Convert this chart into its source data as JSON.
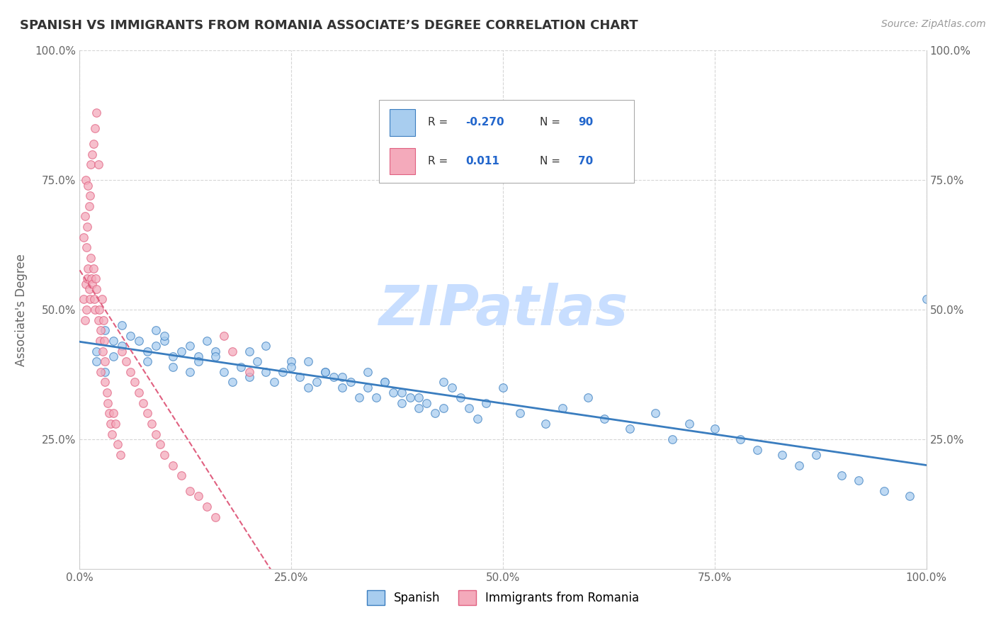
{
  "title": "SPANISH VS IMMIGRANTS FROM ROMANIA ASSOCIATE’S DEGREE CORRELATION CHART",
  "source_text": "Source: ZipAtlas.com",
  "ylabel": "Associate's Degree",
  "watermark": "ZIPatlas",
  "xlim": [
    0.0,
    1.0
  ],
  "ylim": [
    0.0,
    1.0
  ],
  "xtick_labels": [
    "0.0%",
    "25.0%",
    "50.0%",
    "75.0%",
    "100.0%"
  ],
  "xtick_positions": [
    0.0,
    0.25,
    0.5,
    0.75,
    1.0
  ],
  "ytick_labels": [
    "25.0%",
    "50.0%",
    "75.0%",
    "100.0%"
  ],
  "ytick_positions": [
    0.25,
    0.5,
    0.75,
    1.0
  ],
  "blue_scatter_x": [
    0.02,
    0.03,
    0.04,
    0.02,
    0.03,
    0.05,
    0.04,
    0.06,
    0.05,
    0.07,
    0.08,
    0.09,
    0.1,
    0.08,
    0.09,
    0.11,
    0.1,
    0.12,
    0.11,
    0.13,
    0.14,
    0.15,
    0.13,
    0.16,
    0.14,
    0.17,
    0.18,
    0.16,
    0.19,
    0.2,
    0.21,
    0.22,
    0.2,
    0.23,
    0.24,
    0.25,
    0.22,
    0.26,
    0.27,
    0.25,
    0.28,
    0.29,
    0.27,
    0.3,
    0.31,
    0.29,
    0.32,
    0.33,
    0.31,
    0.34,
    0.35,
    0.36,
    0.34,
    0.37,
    0.38,
    0.36,
    0.39,
    0.4,
    0.38,
    0.41,
    0.42,
    0.4,
    0.43,
    0.44,
    0.45,
    0.43,
    0.46,
    0.47,
    0.48,
    0.5,
    0.52,
    0.55,
    0.57,
    0.6,
    0.62,
    0.65,
    0.68,
    0.7,
    0.72,
    0.75,
    0.78,
    0.8,
    0.83,
    0.85,
    0.87,
    0.9,
    0.92,
    0.95,
    0.98,
    1.0
  ],
  "blue_scatter_y": [
    0.42,
    0.38,
    0.44,
    0.4,
    0.46,
    0.43,
    0.41,
    0.45,
    0.47,
    0.44,
    0.42,
    0.46,
    0.44,
    0.4,
    0.43,
    0.41,
    0.45,
    0.42,
    0.39,
    0.43,
    0.41,
    0.44,
    0.38,
    0.42,
    0.4,
    0.38,
    0.36,
    0.41,
    0.39,
    0.37,
    0.4,
    0.38,
    0.42,
    0.36,
    0.38,
    0.4,
    0.43,
    0.37,
    0.35,
    0.39,
    0.36,
    0.38,
    0.4,
    0.37,
    0.35,
    0.38,
    0.36,
    0.33,
    0.37,
    0.35,
    0.33,
    0.36,
    0.38,
    0.34,
    0.32,
    0.36,
    0.33,
    0.31,
    0.34,
    0.32,
    0.3,
    0.33,
    0.31,
    0.35,
    0.33,
    0.36,
    0.31,
    0.29,
    0.32,
    0.35,
    0.3,
    0.28,
    0.31,
    0.33,
    0.29,
    0.27,
    0.3,
    0.25,
    0.28,
    0.27,
    0.25,
    0.23,
    0.22,
    0.2,
    0.22,
    0.18,
    0.17,
    0.15,
    0.14,
    0.52
  ],
  "pink_scatter_x": [
    0.005,
    0.006,
    0.007,
    0.008,
    0.009,
    0.01,
    0.011,
    0.012,
    0.013,
    0.014,
    0.005,
    0.006,
    0.008,
    0.009,
    0.011,
    0.012,
    0.007,
    0.01,
    0.013,
    0.015,
    0.015,
    0.016,
    0.017,
    0.018,
    0.019,
    0.02,
    0.016,
    0.018,
    0.02,
    0.022,
    0.022,
    0.024,
    0.025,
    0.023,
    0.026,
    0.028,
    0.027,
    0.029,
    0.03,
    0.025,
    0.03,
    0.032,
    0.035,
    0.033,
    0.036,
    0.038,
    0.04,
    0.042,
    0.045,
    0.048,
    0.05,
    0.055,
    0.06,
    0.065,
    0.07,
    0.075,
    0.08,
    0.085,
    0.09,
    0.095,
    0.1,
    0.11,
    0.12,
    0.13,
    0.14,
    0.15,
    0.16,
    0.17,
    0.18,
    0.2
  ],
  "pink_scatter_y": [
    0.52,
    0.48,
    0.55,
    0.5,
    0.56,
    0.58,
    0.54,
    0.52,
    0.6,
    0.56,
    0.64,
    0.68,
    0.62,
    0.66,
    0.7,
    0.72,
    0.75,
    0.74,
    0.78,
    0.8,
    0.55,
    0.58,
    0.52,
    0.5,
    0.56,
    0.54,
    0.82,
    0.85,
    0.88,
    0.78,
    0.48,
    0.44,
    0.46,
    0.5,
    0.52,
    0.48,
    0.42,
    0.44,
    0.4,
    0.38,
    0.36,
    0.34,
    0.3,
    0.32,
    0.28,
    0.26,
    0.3,
    0.28,
    0.24,
    0.22,
    0.42,
    0.4,
    0.38,
    0.36,
    0.34,
    0.32,
    0.3,
    0.28,
    0.26,
    0.24,
    0.22,
    0.2,
    0.18,
    0.15,
    0.14,
    0.12,
    0.1,
    0.45,
    0.42,
    0.38
  ],
  "blue_color": "#A8CDEF",
  "pink_color": "#F4AABB",
  "blue_line_color": "#3A7DBF",
  "pink_line_color": "#E06080",
  "title_color": "#333333",
  "axis_label_color": "#666666",
  "tick_color": "#666666",
  "grid_color": "#CCCCCC",
  "background_color": "#FFFFFF",
  "watermark_color": "#C8DEFF",
  "figsize": [
    14.06,
    8.92
  ],
  "dpi": 100
}
